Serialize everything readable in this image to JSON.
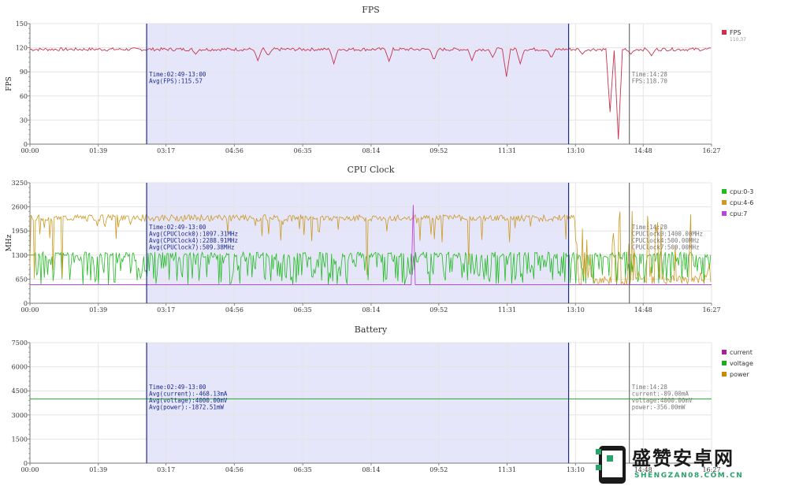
{
  "time_ticks": [
    "00:00",
    "01:39",
    "03:17",
    "04:56",
    "06:35",
    "08:14",
    "09:52",
    "11:31",
    "13:10",
    "14:48",
    "16:27"
  ],
  "selection": {
    "start": "02:49",
    "end": "13:00",
    "fill": "#e6e6fa",
    "line": "#1c2a8c"
  },
  "cursor": {
    "time": "14:28",
    "line": "#555555"
  },
  "chart_data": [
    {
      "type": "line",
      "title": "FPS",
      "ylabel": "FPS",
      "ylim": [
        0,
        150
      ],
      "yticks": [
        0,
        30,
        60,
        90,
        120,
        150
      ],
      "x_range_minutes": [
        0,
        987
      ],
      "series": [
        {
          "name": "FPS",
          "color": "#c8324f"
        }
      ],
      "legend_sub": "110.37",
      "baseline": 118,
      "dips": [
        [
          240,
          112
        ],
        [
          330,
          104
        ],
        [
          345,
          110
        ],
        [
          440,
          100
        ],
        [
          520,
          103
        ],
        [
          585,
          104
        ],
        [
          640,
          104
        ],
        [
          670,
          108
        ],
        [
          690,
          84
        ],
        [
          710,
          100
        ],
        [
          755,
          107
        ],
        [
          800,
          112
        ],
        [
          840,
          40
        ],
        [
          845,
          116
        ],
        [
          852,
          6
        ],
        [
          870,
          112
        ],
        [
          900,
          110
        ]
      ],
      "sel_annotation": [
        "Time:02:49-13:00",
        "Avg(FPS):115.57"
      ],
      "cur_annotation": [
        "Time:14:28",
        "FPS:118.70"
      ]
    },
    {
      "type": "line",
      "title": "CPU Clock",
      "ylabel": "MHz",
      "ylim": [
        0,
        3250
      ],
      "yticks": [
        0,
        650,
        1300,
        1950,
        2600,
        3250
      ],
      "x_range_minutes": [
        0,
        987
      ],
      "series": [
        {
          "name": "cpu:0-3",
          "color": "#22bb22"
        },
        {
          "name": "cpu:4-6",
          "color": "#cc9922"
        },
        {
          "name": "cpu:7",
          "color": "#bb44dd"
        }
      ],
      "sel_annotation": [
        "Time:02:49-13:00",
        "Avg(CPUClock0):1097.31MHz",
        "Avg(CPUClock4):2288.91MHz",
        "Avg(CPUClock7):509.38MHz"
      ],
      "cur_annotation": [
        "Time:14:28",
        "CPUClock0:1400.00MHz",
        "CPUClock4:500.00MHz",
        "CPUClock7:500.00MHz"
      ]
    },
    {
      "type": "line",
      "title": "Battery",
      "ylabel": "",
      "ylim": [
        0,
        7500
      ],
      "yticks": [
        0,
        1500,
        3000,
        4500,
        6000,
        7500
      ],
      "x_range_minutes": [
        0,
        987
      ],
      "series": [
        {
          "name": "current",
          "color": "#aa2299",
          "value": -468.13
        },
        {
          "name": "voltage",
          "color": "#22aa22",
          "value": 4000
        },
        {
          "name": "power",
          "color": "#cc8800",
          "value": -1872.51
        }
      ],
      "sel_annotation": [
        "Time:02:49-13:00",
        "Avg(current):-468.13mA",
        "Avg(voltage):4000.00mV",
        "Avg(power):-1872.51mW"
      ],
      "cur_annotation": [
        "Time:14:28",
        "current:-89.00mA",
        "voltage:4000.00mV",
        "power:-356.00mW"
      ]
    }
  ],
  "watermark": {
    "title": "盛赞安卓网",
    "url": "SHENGZAN08.COM.CN"
  }
}
